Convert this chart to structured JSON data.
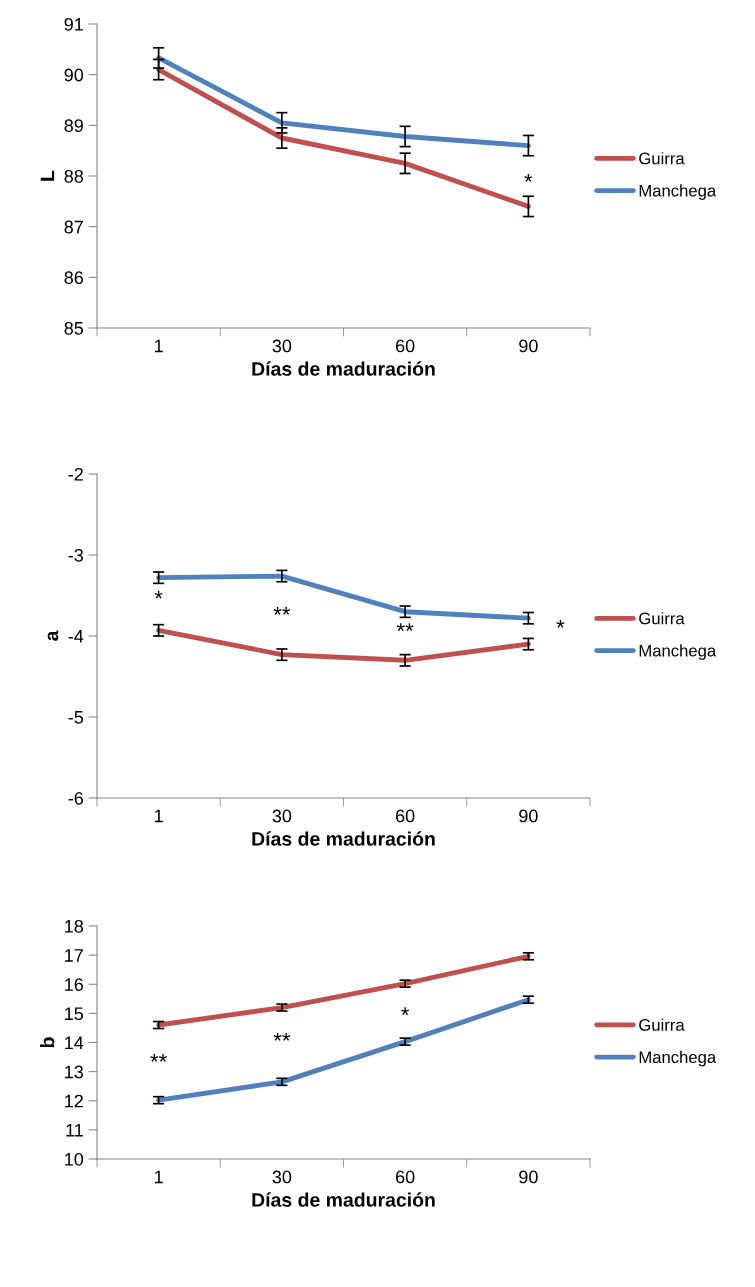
{
  "chart_data": [
    {
      "type": "line",
      "categories": [
        "1",
        "30",
        "60",
        "90"
      ],
      "xlabel": "Días de maduración",
      "ylabel": "L",
      "ylim": [
        85,
        91
      ],
      "yticks": [
        85,
        86,
        87,
        88,
        89,
        90,
        91
      ],
      "legend": "right",
      "grid": false,
      "series": [
        {
          "name": "Guirra",
          "color": "#c0504d",
          "values": [
            90.1,
            88.75,
            88.25,
            87.4
          ],
          "errors": [
            0.2,
            0.2,
            0.2,
            0.2
          ]
        },
        {
          "name": "Manchega",
          "color": "#4f81bd",
          "values": [
            90.33,
            89.05,
            88.78,
            88.6
          ],
          "errors": [
            0.2,
            0.2,
            0.2,
            0.2
          ]
        }
      ],
      "annotations": [
        "*"
      ]
    },
    {
      "type": "line",
      "categories": [
        "1",
        "30",
        "60",
        "90"
      ],
      "xlabel": "Días de maduración",
      "ylabel": "a",
      "ylim": [
        -6,
        -2
      ],
      "yticks": [
        -6,
        -5,
        -4,
        -3,
        -2
      ],
      "legend": "right",
      "grid": false,
      "series": [
        {
          "name": "Guirra",
          "color": "#c0504d",
          "values": [
            -3.93,
            -4.23,
            -4.3,
            -4.1
          ],
          "errors": [
            0.07,
            0.07,
            0.07,
            0.07
          ]
        },
        {
          "name": "Manchega",
          "color": "#4f81bd",
          "values": [
            -3.28,
            -3.26,
            -3.7,
            -3.78
          ],
          "errors": [
            0.07,
            0.07,
            0.07,
            0.07
          ]
        }
      ],
      "annotations": [
        "*",
        "**",
        "**",
        "*"
      ]
    },
    {
      "type": "line",
      "categories": [
        "1",
        "30",
        "60",
        "90"
      ],
      "xlabel": "Días de maduración",
      "ylabel": "b",
      "ylim": [
        10,
        18
      ],
      "yticks": [
        10,
        11,
        12,
        13,
        14,
        15,
        16,
        17,
        18
      ],
      "legend": "right",
      "grid": false,
      "series": [
        {
          "name": "Guirra",
          "color": "#c0504d",
          "values": [
            14.6,
            15.2,
            16.02,
            16.96
          ],
          "errors": [
            0.12,
            0.12,
            0.12,
            0.12
          ]
        },
        {
          "name": "Manchega",
          "color": "#4f81bd",
          "values": [
            12.02,
            12.65,
            14.03,
            15.47
          ],
          "errors": [
            0.12,
            0.12,
            0.12,
            0.12
          ]
        }
      ],
      "annotations": [
        "**",
        "**",
        "*"
      ]
    }
  ]
}
